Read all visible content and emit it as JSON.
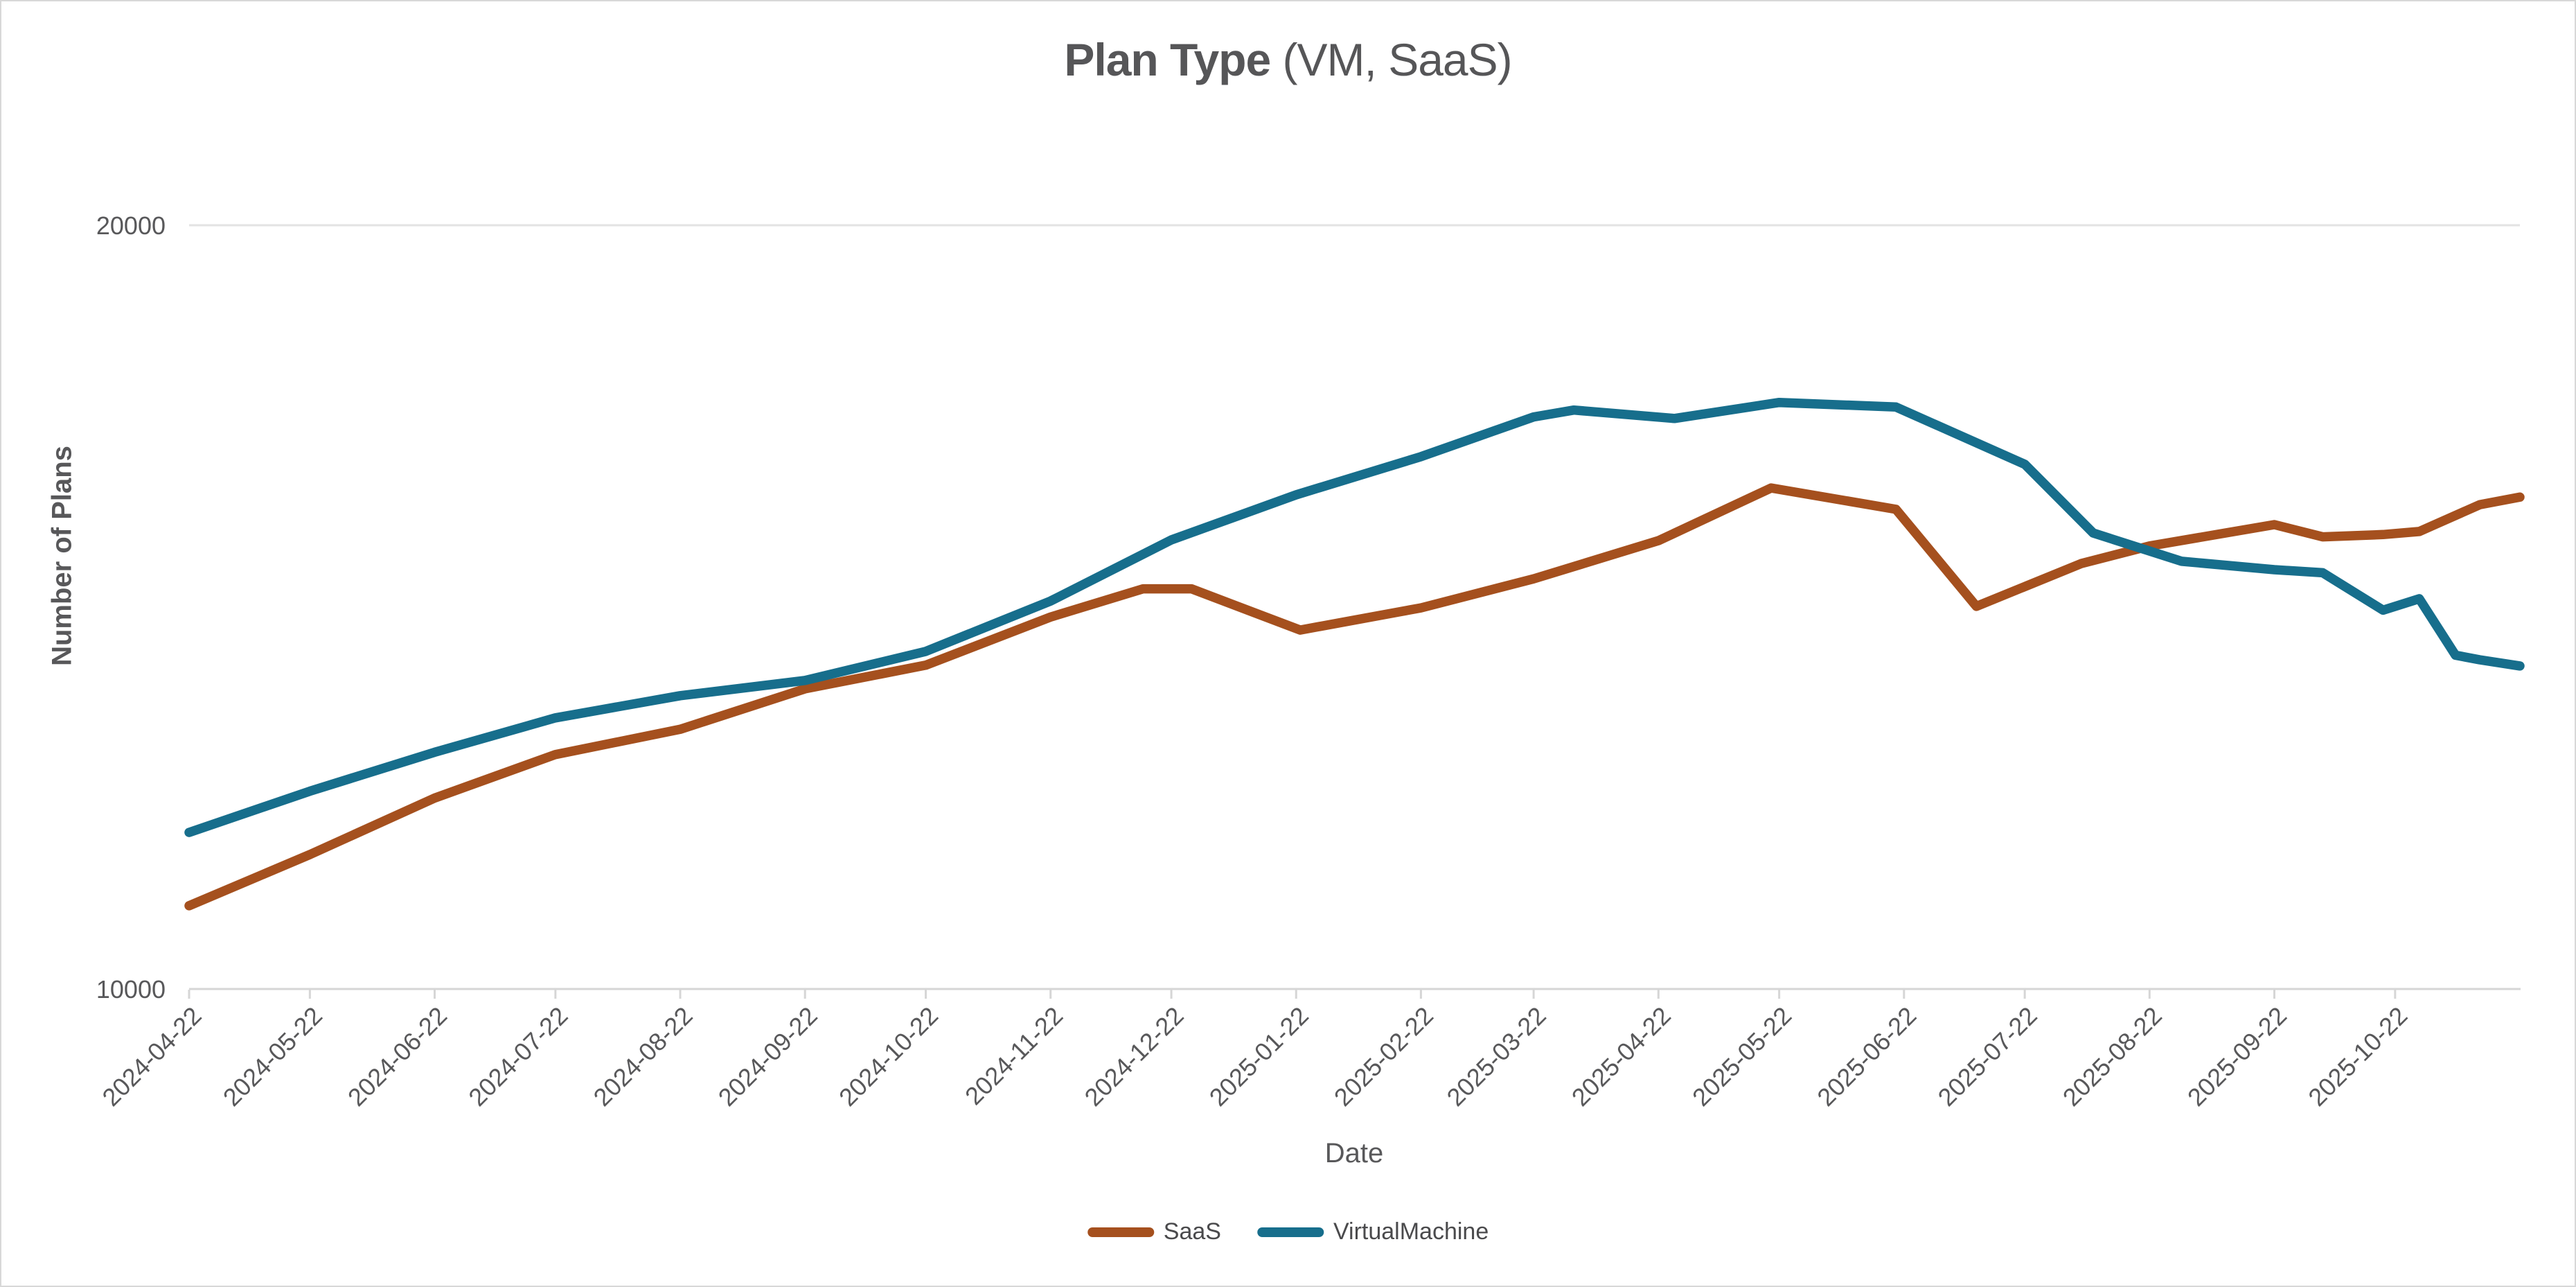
{
  "title": {
    "main": "Plan Type",
    "suffix": " (VM, SaaS)"
  },
  "colors": {
    "grid_line": "#e3e3e3",
    "axis_line": "#d6d6d6",
    "tick_mark": "#d6d6d6",
    "tick_text": "#58585a",
    "title_text": "#565658"
  },
  "chart_data": {
    "type": "line",
    "title": "Plan Type (VM, SaaS)",
    "xlabel": "Date",
    "ylabel": "Number of Plans",
    "x_type": "time",
    "x_range": [
      "2024-04-22",
      "2025-11-22"
    ],
    "ylim": [
      10000,
      20000
    ],
    "y_ticks": [
      10000,
      20000
    ],
    "grid": "top-gridline-only",
    "legend_position": "bottom-center",
    "x_tick_labels": [
      "2024-04-22",
      "2024-05-22",
      "2024-06-22",
      "2024-07-22",
      "2024-08-22",
      "2024-09-22",
      "2024-10-22",
      "2024-11-22",
      "2024-12-22",
      "2025-01-22",
      "2025-02-22",
      "2025-03-22",
      "2025-04-22",
      "2025-05-22",
      "2025-06-22",
      "2025-07-22",
      "2025-08-22",
      "2025-09-22",
      "2025-10-22"
    ],
    "series": [
      {
        "name": "SaaS",
        "color": "#A5501E",
        "points": [
          [
            "2024-04-22",
            11090
          ],
          [
            "2024-05-22",
            11760
          ],
          [
            "2024-06-22",
            12500
          ],
          [
            "2024-07-22",
            13070
          ],
          [
            "2024-08-22",
            13400
          ],
          [
            "2024-09-22",
            13930
          ],
          [
            "2024-10-22",
            14240
          ],
          [
            "2024-11-22",
            14870
          ],
          [
            "2024-12-15",
            15240
          ],
          [
            "2024-12-27",
            15240
          ],
          [
            "2025-01-23",
            14700
          ],
          [
            "2025-02-22",
            14990
          ],
          [
            "2025-03-22",
            15370
          ],
          [
            "2025-04-22",
            15870
          ],
          [
            "2025-05-20",
            16560
          ],
          [
            "2025-06-20",
            16280
          ],
          [
            "2025-07-10",
            15010
          ],
          [
            "2025-08-05",
            15570
          ],
          [
            "2025-08-22",
            15800
          ],
          [
            "2025-09-22",
            16080
          ],
          [
            "2025-10-04",
            15920
          ],
          [
            "2025-10-19",
            15950
          ],
          [
            "2025-10-28",
            15990
          ],
          [
            "2025-11-12",
            16340
          ],
          [
            "2025-11-22",
            16440
          ]
        ]
      },
      {
        "name": "VirtualMachine",
        "color": "#176E8C",
        "points": [
          [
            "2024-04-22",
            12050
          ],
          [
            "2024-05-22",
            12590
          ],
          [
            "2024-06-22",
            13100
          ],
          [
            "2024-07-22",
            13550
          ],
          [
            "2024-08-22",
            13840
          ],
          [
            "2024-09-22",
            14040
          ],
          [
            "2024-10-22",
            14420
          ],
          [
            "2024-11-22",
            15080
          ],
          [
            "2024-12-22",
            15880
          ],
          [
            "2025-01-22",
            16470
          ],
          [
            "2025-02-22",
            16970
          ],
          [
            "2025-03-22",
            17490
          ],
          [
            "2025-04-01",
            17580
          ],
          [
            "2025-04-26",
            17470
          ],
          [
            "2025-05-22",
            17680
          ],
          [
            "2025-06-20",
            17620
          ],
          [
            "2025-07-22",
            16870
          ],
          [
            "2025-08-08",
            15970
          ],
          [
            "2025-08-30",
            15600
          ],
          [
            "2025-09-22",
            15490
          ],
          [
            "2025-10-04",
            15450
          ],
          [
            "2025-10-19",
            14960
          ],
          [
            "2025-10-28",
            15110
          ],
          [
            "2025-11-06",
            14370
          ],
          [
            "2025-11-12",
            14310
          ],
          [
            "2025-11-22",
            14230
          ]
        ]
      }
    ]
  }
}
